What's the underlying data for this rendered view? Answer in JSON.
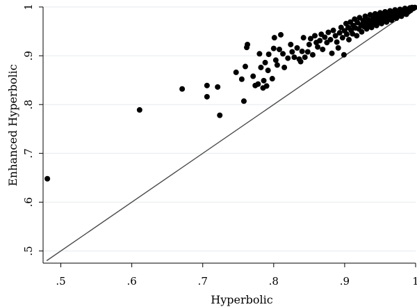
{
  "chart_data": {
    "type": "scatter",
    "xlabel": "Hyperbolic",
    "ylabel": "Enhanced Hyperbolic",
    "xlim": [
      0.475,
      1.0
    ],
    "ylim": [
      0.475,
      1.0
    ],
    "grid": true,
    "legend": "none",
    "x_ticks": [
      {
        "value": 0.5,
        "label": ".5"
      },
      {
        "value": 0.6,
        "label": ".6"
      },
      {
        "value": 0.7,
        "label": ".7"
      },
      {
        "value": 0.8,
        "label": ".8"
      },
      {
        "value": 0.9,
        "label": ".9"
      },
      {
        "value": 1.0,
        "label": "1"
      }
    ],
    "y_ticks": [
      {
        "value": 0.5,
        "label": ".5"
      },
      {
        "value": 0.6,
        "label": ".6"
      },
      {
        "value": 0.7,
        "label": ".7"
      },
      {
        "value": 0.8,
        "label": ".8"
      },
      {
        "value": 0.9,
        "label": ".9"
      },
      {
        "value": 1.0,
        "label": "1"
      }
    ],
    "reference_line": {
      "from": [
        0.48,
        0.48
      ],
      "to": [
        1.0,
        1.0
      ]
    },
    "colors": {
      "points": "#000000",
      "line": "#4a4a4a",
      "grid": "#e6e9ec"
    },
    "series": [
      {
        "points": [
          [
            0.481,
            0.648
          ],
          [
            0.611,
            0.789
          ],
          [
            0.671,
            0.832
          ],
          [
            0.706,
            0.839
          ],
          [
            0.706,
            0.816
          ],
          [
            0.721,
            0.836
          ],
          [
            0.724,
            0.778
          ],
          [
            0.747,
            0.866
          ],
          [
            0.755,
            0.852
          ],
          [
            0.758,
            0.807
          ],
          [
            0.76,
            0.878
          ],
          [
            0.762,
            0.917
          ],
          [
            0.763,
            0.923
          ],
          [
            0.771,
            0.858
          ],
          [
            0.774,
            0.839
          ],
          [
            0.778,
            0.842
          ],
          [
            0.78,
            0.904
          ],
          [
            0.782,
            0.876
          ],
          [
            0.785,
            0.834
          ],
          [
            0.786,
            0.849
          ],
          [
            0.788,
            0.886
          ],
          [
            0.79,
            0.838
          ],
          [
            0.792,
            0.87
          ],
          [
            0.793,
            0.903
          ],
          [
            0.798,
            0.853
          ],
          [
            0.8,
            0.915
          ],
          [
            0.801,
            0.937
          ],
          [
            0.803,
            0.891
          ],
          [
            0.805,
            0.881
          ],
          [
            0.808,
            0.913
          ],
          [
            0.81,
            0.943
          ],
          [
            0.813,
            0.904
          ],
          [
            0.815,
            0.876
          ],
          [
            0.82,
            0.895
          ],
          [
            0.824,
            0.923
          ],
          [
            0.826,
            0.908
          ],
          [
            0.829,
            0.897
          ],
          [
            0.833,
            0.916
          ],
          [
            0.836,
            0.893
          ],
          [
            0.838,
            0.888
          ],
          [
            0.84,
            0.909
          ],
          [
            0.842,
            0.937
          ],
          [
            0.844,
            0.897
          ],
          [
            0.848,
            0.908
          ],
          [
            0.85,
            0.923
          ],
          [
            0.852,
            0.935
          ],
          [
            0.855,
            0.902
          ],
          [
            0.858,
            0.941
          ],
          [
            0.86,
            0.927
          ],
          [
            0.862,
            0.918
          ],
          [
            0.865,
            0.931
          ],
          [
            0.867,
            0.944
          ],
          [
            0.869,
            0.913
          ],
          [
            0.872,
            0.938
          ],
          [
            0.875,
            0.927
          ],
          [
            0.877,
            0.948
          ],
          [
            0.88,
            0.933
          ],
          [
            0.882,
            0.905
          ],
          [
            0.884,
            0.952
          ],
          [
            0.887,
            0.941
          ],
          [
            0.889,
            0.928
          ],
          [
            0.891,
            0.916
          ],
          [
            0.893,
            0.947
          ],
          [
            0.895,
            0.958
          ],
          [
            0.897,
            0.937
          ],
          [
            0.899,
            0.902
          ],
          [
            0.9,
            0.951
          ],
          [
            0.902,
            0.966
          ],
          [
            0.903,
            0.944
          ],
          [
            0.905,
            0.958
          ],
          [
            0.906,
            0.933
          ],
          [
            0.908,
            0.969
          ],
          [
            0.909,
            0.952
          ],
          [
            0.911,
            0.945
          ],
          [
            0.912,
            0.962
          ],
          [
            0.914,
            0.975
          ],
          [
            0.915,
            0.957
          ],
          [
            0.917,
            0.941
          ],
          [
            0.918,
            0.968
          ],
          [
            0.92,
            0.955
          ],
          [
            0.921,
            0.978
          ],
          [
            0.923,
            0.963
          ],
          [
            0.924,
            0.949
          ],
          [
            0.926,
            0.972
          ],
          [
            0.927,
            0.96
          ],
          [
            0.929,
            0.981
          ],
          [
            0.93,
            0.967
          ],
          [
            0.931,
            0.955
          ],
          [
            0.933,
            0.974
          ],
          [
            0.934,
            0.962
          ],
          [
            0.936,
            0.984
          ],
          [
            0.937,
            0.97
          ],
          [
            0.938,
            0.958
          ],
          [
            0.94,
            0.977
          ],
          [
            0.941,
            0.965
          ],
          [
            0.943,
            0.986
          ],
          [
            0.944,
            0.973
          ],
          [
            0.945,
            0.962
          ],
          [
            0.947,
            0.98
          ],
          [
            0.948,
            0.969
          ],
          [
            0.95,
            0.988
          ],
          [
            0.951,
            0.976
          ],
          [
            0.952,
            0.966
          ],
          [
            0.954,
            0.983
          ],
          [
            0.955,
            0.972
          ],
          [
            0.957,
            0.99
          ],
          [
            0.958,
            0.979
          ],
          [
            0.959,
            0.969
          ],
          [
            0.961,
            0.986
          ],
          [
            0.962,
            0.975
          ],
          [
            0.964,
            0.992
          ],
          [
            0.965,
            0.982
          ],
          [
            0.966,
            0.973
          ],
          [
            0.968,
            0.988
          ],
          [
            0.969,
            0.978
          ],
          [
            0.971,
            0.994
          ],
          [
            0.972,
            0.985
          ],
          [
            0.973,
            0.977
          ],
          [
            0.975,
            0.991
          ],
          [
            0.976,
            0.982
          ],
          [
            0.978,
            0.995
          ],
          [
            0.979,
            0.988
          ],
          [
            0.98,
            0.981
          ],
          [
            0.982,
            0.993
          ],
          [
            0.983,
            0.986
          ],
          [
            0.985,
            0.997
          ],
          [
            0.986,
            0.99
          ],
          [
            0.987,
            0.985
          ],
          [
            0.989,
            0.995
          ],
          [
            0.99,
            0.99
          ],
          [
            0.992,
            0.998
          ],
          [
            0.993,
            0.993
          ],
          [
            0.995,
            0.999
          ],
          [
            0.997,
            0.997
          ],
          [
            0.999,
            0.999
          ]
        ]
      }
    ]
  }
}
